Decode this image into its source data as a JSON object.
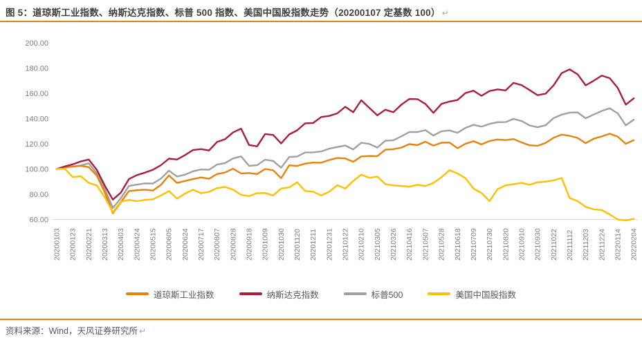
{
  "header": {
    "title": "图 5：道琼斯工业指数、纳斯达克指数、标普 500 指数、美国中国股指数走势（20200107 定基数 100）",
    "return_mark": "↵"
  },
  "footer": {
    "source": "资料来源：Wind，天风证券研究所",
    "return_mark": "↵"
  },
  "colors": {
    "accent_rule": "#E8820C",
    "title_text": "#3F3F3F",
    "axis_text": "#7F7F7F",
    "axis_line": "#D9D9D9",
    "dow": "#E8820C",
    "nasdaq": "#AA1E3C",
    "sp500": "#A0A0A0",
    "china": "#FFC000"
  },
  "chart_data": {
    "type": "line",
    "title": "道琼斯工业指数、纳斯达克指数、标普500指数、美国中国股指数走势",
    "base_note": "20200107 定基数 100",
    "ylim": [
      60,
      200
    ],
    "y_tick_labels": [
      "200.00",
      "180.00",
      "160.00",
      "140.00",
      "120.00",
      "100.00",
      "80.00",
      "60.00"
    ],
    "gridlines": false,
    "legend_position": "bottom",
    "x_resolution": "two points per x-tick interval; even indices align with x_tick_labels",
    "x_tick_labels": [
      "20200103",
      "20200123",
      "20200221",
      "20200313",
      "20200403",
      "20200424",
      "20200515",
      "20200605",
      "20200624",
      "20200717",
      "20200807",
      "20200828",
      "20200918",
      "20201009",
      "20201030",
      "20201120",
      "20201211",
      "20201231",
      "20210122",
      "20210210",
      "20210305",
      "20210326",
      "20210416",
      "20210507",
      "20210528",
      "20210618",
      "20210709",
      "20210730",
      "20210820",
      "20210910",
      "20210930",
      "20211022",
      "20211112",
      "20211203",
      "20211224",
      "20220114",
      "20220204"
    ],
    "series": [
      {
        "name": "道琼斯工业指数",
        "color": "#E8820C",
        "values": [
          100,
          101.2,
          102,
          102.5,
          101.5,
          94.8,
          81.5,
          65,
          73.7,
          82.5,
          83.2,
          83.6,
          82.9,
          87.4,
          94.9,
          89,
          90.5,
          92,
          93.3,
          92.3,
          96,
          97.2,
          100.2,
          96.5,
          96.8,
          96,
          100,
          99,
          92.7,
          102.9,
          102.4,
          104.3,
          105.1,
          105,
          107.1,
          108.7,
          108.4,
          105.7,
          110,
          110.3,
          110.2,
          115.3,
          115.7,
          117,
          119.7,
          118.9,
          121.7,
          118.5,
          120.8,
          121,
          116.5,
          120,
          122,
          119.5,
          122.2,
          123.4,
          122.9,
          123.7,
          121.1,
          118.8,
          118.4,
          120.7,
          124.8,
          127.3,
          126.3,
          124.6,
          120.5,
          124,
          125.8,
          128,
          125.6,
          120,
          122.8
        ]
      },
      {
        "name": "纳斯达克指数",
        "color": "#AA1E3C",
        "values": [
          100,
          102,
          103.7,
          106,
          107.5,
          99.4,
          86.8,
          75.7,
          81.3,
          92,
          95.2,
          97.1,
          99.4,
          103,
          108.2,
          107.5,
          111,
          115,
          115.8,
          114.7,
          121.4,
          123.6,
          129,
          132,
          119,
          118,
          127.7,
          127,
          120.3,
          127.4,
          130.7,
          136.2,
          136.5,
          141.2,
          142.1,
          144.1,
          149.3,
          145,
          154.5,
          148.5,
          142.5,
          147,
          145,
          151,
          155.5,
          155.4,
          151.6,
          144.5,
          151.6,
          153.5,
          154.7,
          160.2,
          162.1,
          158,
          161.8,
          163.1,
          162.3,
          168.3,
          166.5,
          162.6,
          158.5,
          159.7,
          166.4,
          176,
          179,
          175,
          166.3,
          170,
          174,
          172,
          164.2,
          151,
          156
        ]
      },
      {
        "name": "标普500",
        "color": "#A0A0A0",
        "values": [
          100,
          101.6,
          101.8,
          102.8,
          104.5,
          96.7,
          84,
          69.1,
          76.9,
          86.5,
          87.6,
          88.6,
          88.5,
          92.4,
          98.7,
          94,
          95.5,
          98.2,
          99.6,
          99.4,
          103.5,
          104.7,
          108.4,
          110,
          102.5,
          103,
          107.4,
          106.4,
          101,
          109.5,
          109.9,
          113.1,
          113.2,
          113.9,
          116.1,
          117.4,
          118.7,
          115.5,
          120.8,
          119.9,
          117,
          122.4,
          122.8,
          125.9,
          129.3,
          129.3,
          130.8,
          126.5,
          129.9,
          130.6,
          128.7,
          132.6,
          135,
          133.6,
          135.8,
          137.1,
          137.2,
          139.7,
          138,
          134.6,
          133.1,
          134.7,
          140.4,
          143.1,
          144.7,
          144.9,
          140.2,
          143.2,
          146,
          148.1,
          144.1,
          134.6,
          139.1
        ]
      },
      {
        "name": "美国中国股指数",
        "color": "#FFC000",
        "values": [
          100,
          100.3,
          93.6,
          94.3,
          89,
          87,
          77.5,
          65.8,
          74,
          75.5,
          74.5,
          75.5,
          76,
          79,
          82.5,
          76.5,
          80.5,
          83.6,
          80.8,
          81.9,
          84.8,
          85.8,
          83.6,
          79.5,
          78.5,
          80.8,
          81,
          79,
          84.5,
          85.4,
          89.5,
          82.6,
          82,
          79,
          82,
          87.2,
          84.5,
          90.5,
          95.5,
          93,
          94,
          88,
          87,
          86.5,
          86,
          87.5,
          86.5,
          89,
          93.5,
          99,
          96.5,
          92.7,
          84.5,
          81,
          74.5,
          84,
          87,
          88,
          89,
          87.5,
          89.5,
          90,
          91,
          92.9,
          77,
          74.5,
          70,
          68,
          67.5,
          64,
          60,
          59.3,
          60.5
        ]
      }
    ]
  }
}
